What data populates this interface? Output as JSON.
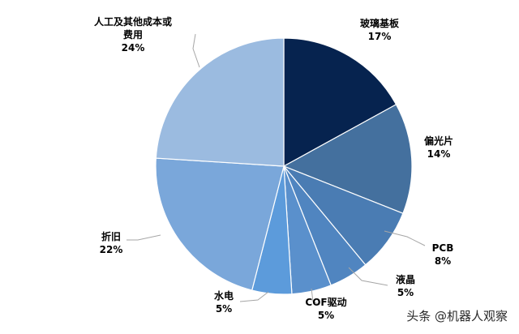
{
  "chart_data": {
    "type": "pie",
    "title": "",
    "start_angle_deg": 0,
    "direction": "clockwise",
    "slices": [
      {
        "label_lines": [
          "玻璃基板"
        ],
        "label": "玻璃基板",
        "value": 17,
        "value_text": "17%",
        "color": "#06234f"
      },
      {
        "label_lines": [
          "偏光片"
        ],
        "label": "偏光片",
        "value": 14,
        "value_text": "14%",
        "color": "#44709e"
      },
      {
        "label_lines": [
          "PCB"
        ],
        "label": "PCB",
        "value": 8,
        "value_text": "8%",
        "color": "#4a7cb3"
      },
      {
        "label_lines": [
          "液晶"
        ],
        "label": "液晶",
        "value": 5,
        "value_text": "5%",
        "color": "#5085c0"
      },
      {
        "label_lines": [
          "COF驱动"
        ],
        "label": "COF驱动",
        "value": 5,
        "value_text": "5%",
        "color": "#5a90cc"
      },
      {
        "label_lines": [
          "水电"
        ],
        "label": "水电",
        "value": 5,
        "value_text": "5%",
        "color": "#5c9bdb"
      },
      {
        "label_lines": [
          "折旧"
        ],
        "label": "折旧",
        "value": 22,
        "value_text": "22%",
        "color": "#7aa7da"
      },
      {
        "label_lines": [
          "人工及其他成本或",
          "费用"
        ],
        "label": "人工及其他成本或费用",
        "value": 24,
        "value_text": "24%",
        "color": "#9bbbe0"
      }
    ]
  },
  "watermark": {
    "text": "头条 @机器人观察"
  }
}
